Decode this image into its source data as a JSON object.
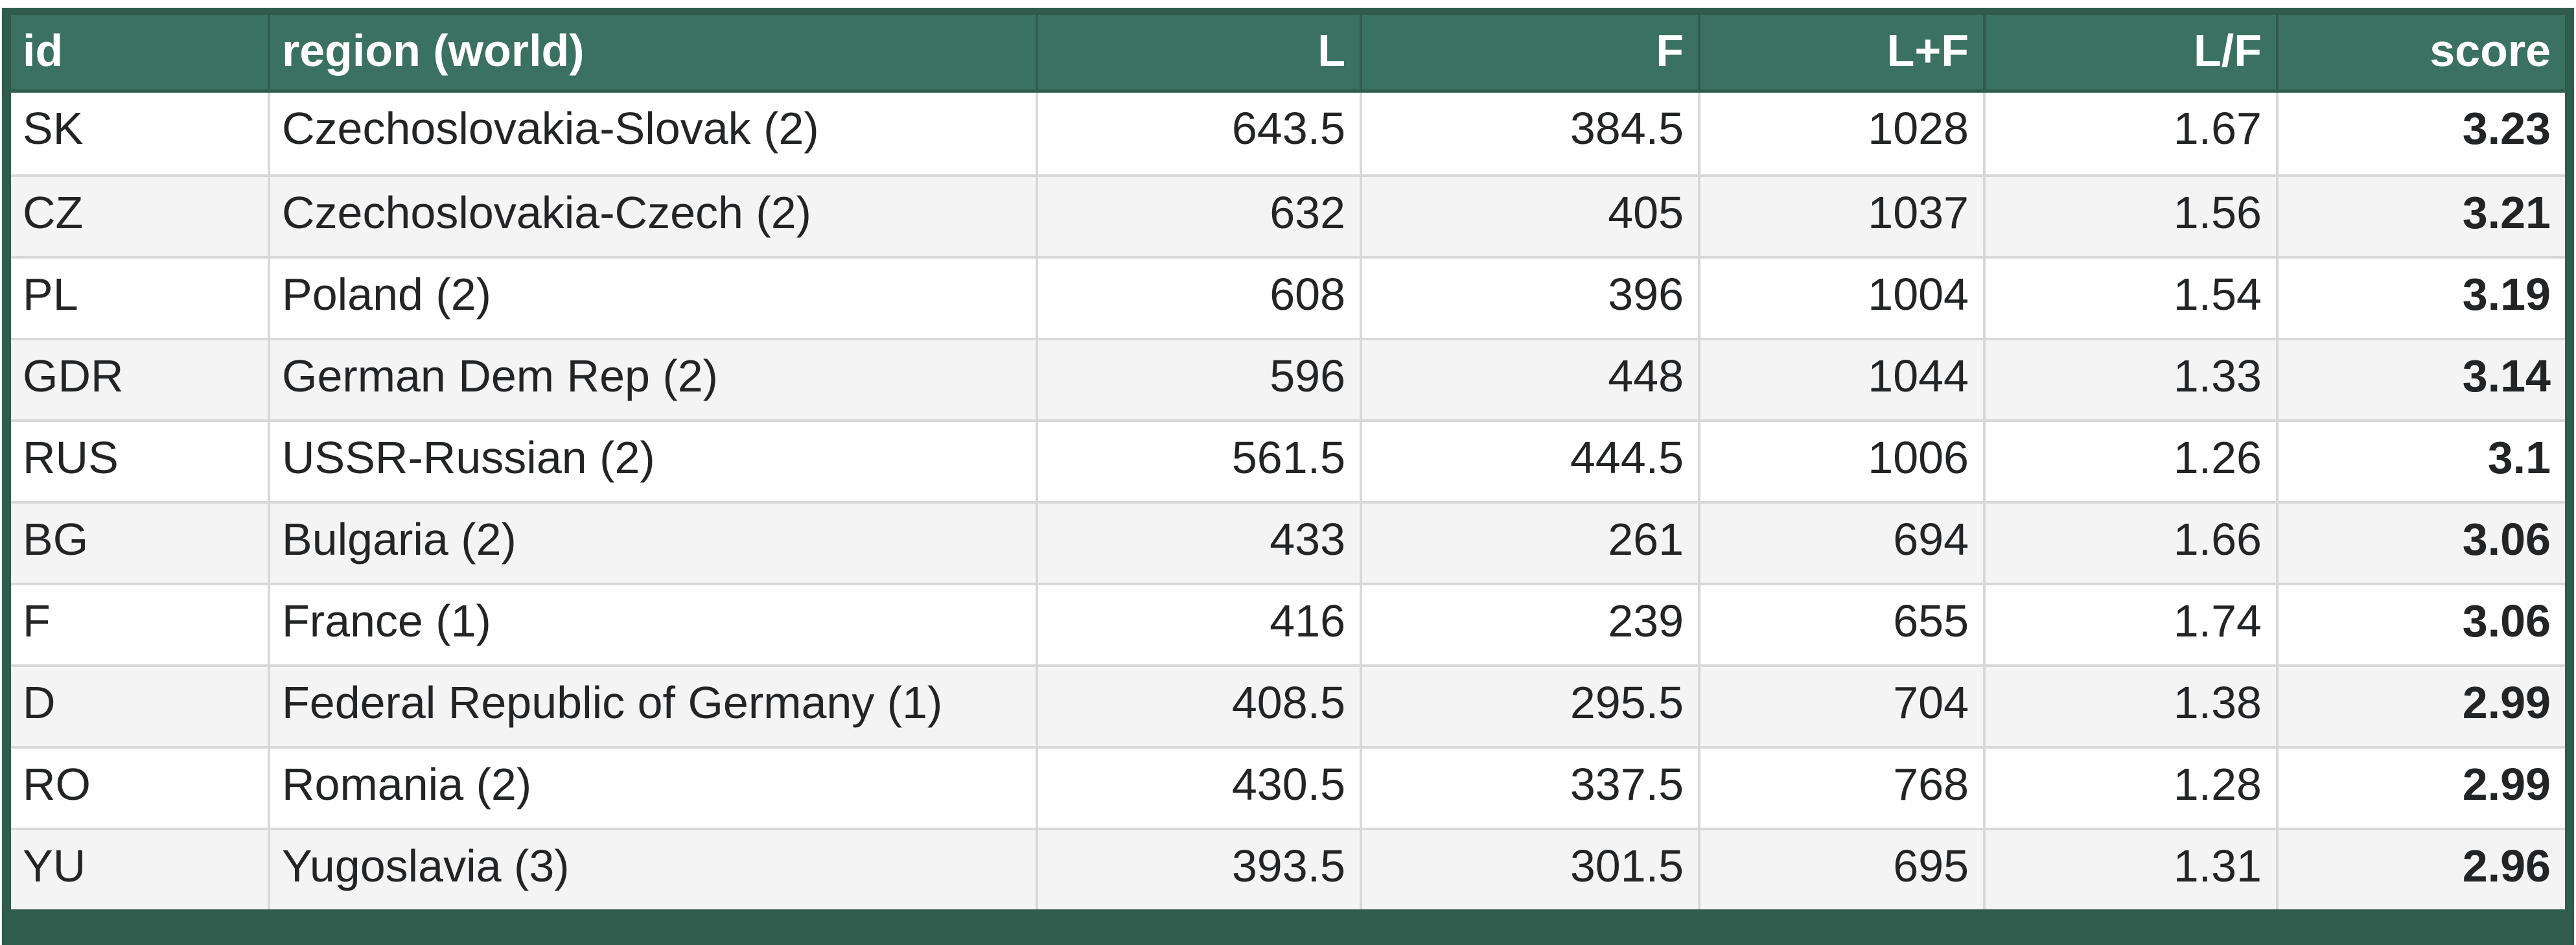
{
  "colors": {
    "frame_green": "#2f5c4d",
    "header_green": "#3b7161",
    "header_text": "#ffffff",
    "body_text": "#222426",
    "separator_gray": "#d8d8d8",
    "row_alt_bg": "#f4f4f5",
    "row_bg": "#ffffff",
    "page_bg": "#ffffff"
  },
  "table": {
    "columns": [
      {
        "key": "id",
        "label": "id",
        "align": "left"
      },
      {
        "key": "region",
        "label": "region (world)",
        "align": "left"
      },
      {
        "key": "L",
        "label": "L",
        "align": "right"
      },
      {
        "key": "F",
        "label": "F",
        "align": "right"
      },
      {
        "key": "LplusF",
        "label": "L+F",
        "align": "right"
      },
      {
        "key": "LoverF",
        "label": "L/F",
        "align": "right"
      },
      {
        "key": "score",
        "label": "score",
        "align": "right"
      }
    ],
    "rows": [
      [
        "SK",
        "Czechoslovakia-Slovak (2)",
        "643.5",
        "384.5",
        "1028",
        "1.67",
        "3.23"
      ],
      [
        "CZ",
        "Czechoslovakia-Czech (2)",
        "632",
        "405",
        "1037",
        "1.56",
        "3.21"
      ],
      [
        "PL",
        "Poland (2)",
        "608",
        "396",
        "1004",
        "1.54",
        "3.19"
      ],
      [
        "GDR",
        "German Dem Rep (2)",
        "596",
        "448",
        "1044",
        "1.33",
        "3.14"
      ],
      [
        "RUS",
        "USSR-Russian (2)",
        "561.5",
        "444.5",
        "1006",
        "1.26",
        "3.1"
      ],
      [
        "BG",
        "Bulgaria (2)",
        "433",
        "261",
        "694",
        "1.66",
        "3.06"
      ],
      [
        "F",
        "France (1)",
        "416",
        "239",
        "655",
        "1.74",
        "3.06"
      ],
      [
        "D",
        "Federal Republic of Germany (1)",
        "408.5",
        "295.5",
        "704",
        "1.38",
        "2.99"
      ],
      [
        "RO",
        "Romania (2)",
        "430.5",
        "337.5",
        "768",
        "1.28",
        "2.99"
      ],
      [
        "YU",
        "Yugoslavia (3)",
        "393.5",
        "301.5",
        "695",
        "1.31",
        "2.96"
      ]
    ]
  },
  "chart_data": {
    "type": "table",
    "title": "",
    "columns": [
      "id",
      "region (world)",
      "L",
      "F",
      "L+F",
      "L/F",
      "score"
    ],
    "rows": [
      [
        "SK",
        "Czechoslovakia-Slovak (2)",
        643.5,
        384.5,
        1028,
        1.67,
        3.23
      ],
      [
        "CZ",
        "Czechoslovakia-Czech (2)",
        632,
        405,
        1037,
        1.56,
        3.21
      ],
      [
        "PL",
        "Poland (2)",
        608,
        396,
        1004,
        1.54,
        3.19
      ],
      [
        "GDR",
        "German Dem Rep (2)",
        596,
        448,
        1044,
        1.33,
        3.14
      ],
      [
        "RUS",
        "USSR-Russian (2)",
        561.5,
        444.5,
        1006,
        1.26,
        3.1
      ],
      [
        "BG",
        "Bulgaria (2)",
        433,
        261,
        694,
        1.66,
        3.06
      ],
      [
        "F",
        "France (1)",
        416,
        239,
        655,
        1.74,
        3.06
      ],
      [
        "D",
        "Federal Republic of Germany (1)",
        408.5,
        295.5,
        704,
        1.38,
        2.99
      ],
      [
        "RO",
        "Romania (2)",
        430.5,
        337.5,
        768,
        1.28,
        2.99
      ],
      [
        "YU",
        "Yugoslavia (3)",
        393.5,
        301.5,
        695,
        1.31,
        2.96
      ]
    ],
    "layout_hints": {
      "header_background": "#3b7161",
      "alternating_rows": true,
      "score_column_bold": true,
      "numeric_columns_right_aligned": true
    }
  }
}
